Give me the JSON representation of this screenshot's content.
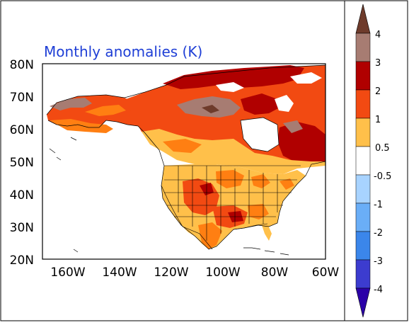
{
  "title": "Monthly anomalies (K)",
  "colors": {
    "title": "#1f3fd6",
    "dark_brown": "#6e3b2b",
    "brown_gray": "#a77c72",
    "dark_red": "#b00000",
    "red_orange": "#f24a12",
    "orange": "#ff7f12",
    "light_orange": "#ffc04a",
    "white": "#ffffff",
    "light_blue": "#a8d3ff",
    "blue1": "#6aaef7",
    "blue2": "#3b86ea",
    "blue3": "#1c5fd0",
    "blue4": "#3c3ccf",
    "dark_blue": "#2b00a8"
  },
  "map": {
    "lat_labels": [
      "80N",
      "70N",
      "60N",
      "50N",
      "40N",
      "30N",
      "20N"
    ],
    "lon_labels": [
      "160W",
      "140W",
      "120W",
      "100W",
      "80W",
      "60W"
    ],
    "lat_range": [
      20,
      80
    ],
    "lon_range": [
      -170,
      -60
    ]
  },
  "colorbar": {
    "labels": [
      "4",
      "3",
      "2",
      "1",
      "0.5",
      "-0.5",
      "-1",
      "-2",
      "-3",
      "-4"
    ]
  }
}
